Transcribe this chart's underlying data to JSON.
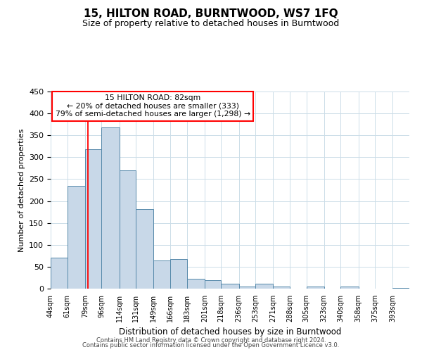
{
  "title": "15, HILTON ROAD, BURNTWOOD, WS7 1FQ",
  "subtitle": "Size of property relative to detached houses in Burntwood",
  "xlabel": "Distribution of detached houses by size in Burntwood",
  "ylabel": "Number of detached properties",
  "bar_labels": [
    "44sqm",
    "61sqm",
    "79sqm",
    "96sqm",
    "114sqm",
    "131sqm",
    "149sqm",
    "166sqm",
    "183sqm",
    "201sqm",
    "218sqm",
    "236sqm",
    "253sqm",
    "271sqm",
    "288sqm",
    "305sqm",
    "323sqm",
    "340sqm",
    "358sqm",
    "375sqm",
    "393sqm"
  ],
  "bar_values": [
    70,
    235,
    318,
    368,
    270,
    182,
    65,
    68,
    23,
    20,
    12,
    5,
    12,
    5,
    0,
    5,
    0,
    5,
    0,
    0,
    2
  ],
  "bar_color": "#c8d8e8",
  "bar_edge_color": "#5588aa",
  "ylim": [
    0,
    450
  ],
  "yticks": [
    0,
    50,
    100,
    150,
    200,
    250,
    300,
    350,
    400,
    450
  ],
  "property_line_x": 82,
  "bin_edges": [
    44,
    61,
    79,
    96,
    114,
    131,
    149,
    166,
    183,
    201,
    218,
    236,
    253,
    271,
    288,
    305,
    323,
    340,
    358,
    375,
    393,
    410
  ],
  "annotation_title": "15 HILTON ROAD: 82sqm",
  "annotation_line1": "← 20% of detached houses are smaller (333)",
  "annotation_line2": "79% of semi-detached houses are larger (1,298) →",
  "footer_line1": "Contains HM Land Registry data © Crown copyright and database right 2024.",
  "footer_line2": "Contains public sector information licensed under the Open Government Licence v3.0.",
  "background_color": "#ffffff",
  "grid_color": "#ccdde8"
}
